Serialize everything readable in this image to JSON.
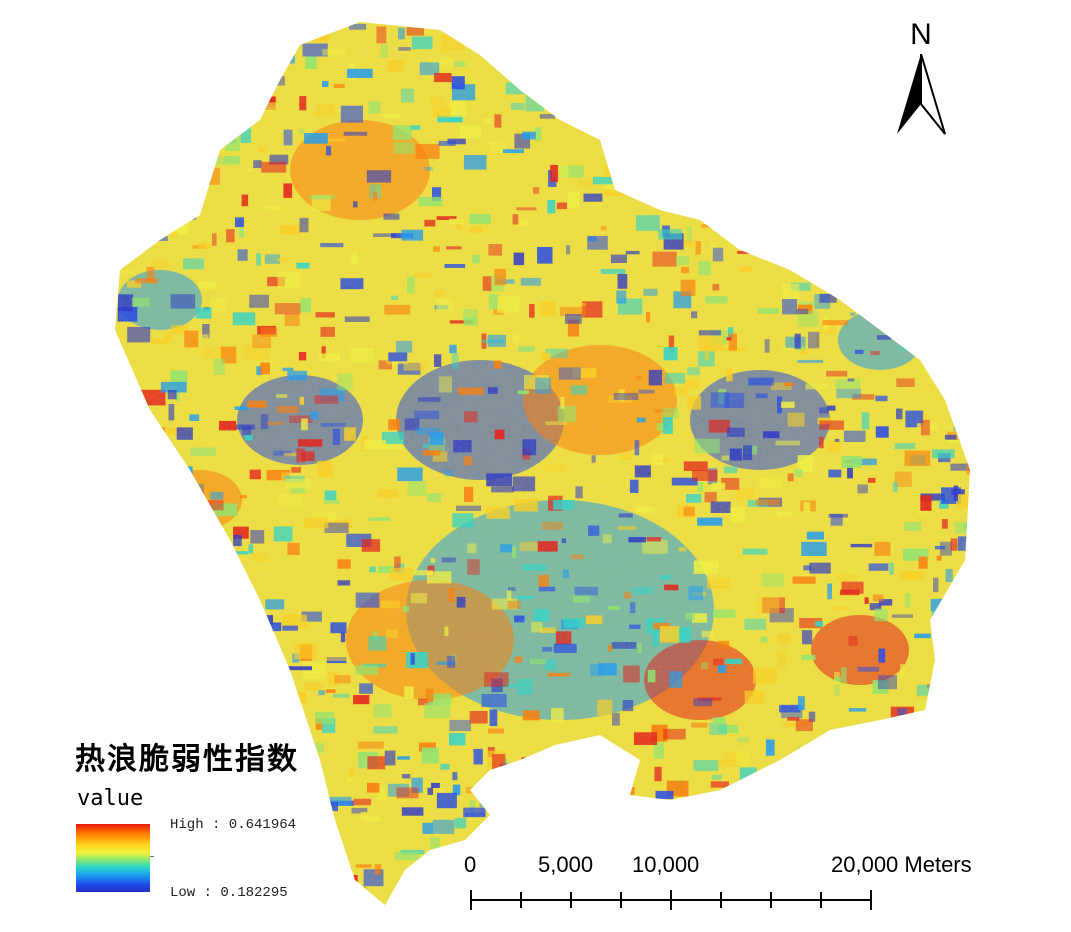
{
  "map": {
    "north_arrow_label": "N",
    "legend": {
      "title": "热浪脆弱性指数",
      "field": "value",
      "high_label": "High : 0.641964",
      "low_label": "Low : 0.182295",
      "high_value": 0.641964,
      "low_value": 0.182295,
      "ramp_colors": [
        "#e8150f",
        "#ff7a00",
        "#ffd21a",
        "#f4f23a",
        "#8ee86a",
        "#2ad6c8",
        "#1a9bf0",
        "#1f46e6",
        "#2430c6"
      ]
    },
    "scale_bar": {
      "labels": [
        "0",
        "5,000",
        "10,000",
        "20,000 Meters"
      ],
      "values": [
        0,
        5000,
        10000,
        20000
      ],
      "units": "Meters"
    }
  }
}
